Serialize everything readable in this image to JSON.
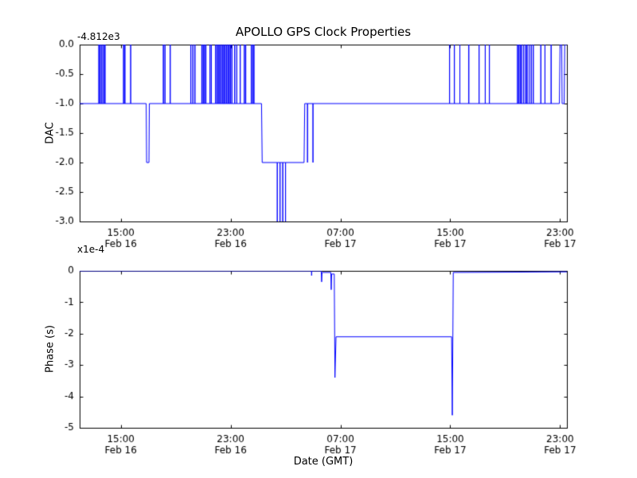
{
  "figure": {
    "background": "#ffffff",
    "frame_color": "#000000",
    "line_color": "#0000ff"
  },
  "chart_data": [
    {
      "type": "line",
      "title": "APOLLO GPS Clock Properties",
      "ylabel": "DAC",
      "offset_text": "-4.812e3",
      "xlim": [
        12,
        47.5
      ],
      "ylim": [
        -3,
        0
      ],
      "grid": false,
      "yticks": [
        0,
        -0.5,
        -1,
        -1.5,
        -2,
        -2.5,
        -3
      ],
      "ytick_labels": [
        "0.0",
        "-0.5",
        "-1.0",
        "-1.5",
        "-2.0",
        "-2.5",
        "-3.0"
      ],
      "xticks": [
        15,
        23,
        31,
        39,
        47
      ],
      "xtick_labels": [
        [
          "15:00",
          "Feb 16"
        ],
        [
          "23:00",
          "Feb 16"
        ],
        [
          "07:00",
          "Feb 17"
        ],
        [
          "15:00",
          "Feb 17"
        ],
        [
          "23:00",
          "Feb 17"
        ]
      ],
      "series": [
        {
          "name": "dac-trace",
          "color": "#0000ff",
          "points": [
            [
              12,
              -1
            ],
            [
              13.4,
              -1
            ],
            [
              13.4,
              0
            ],
            [
              13.4,
              -1
            ],
            [
              13.5,
              -1
            ],
            [
              13.5,
              0
            ],
            [
              13.5,
              -1
            ],
            [
              13.62,
              -1
            ],
            [
              13.62,
              0
            ],
            [
              13.62,
              -1
            ],
            [
              13.75,
              -1
            ],
            [
              13.75,
              0
            ],
            [
              13.75,
              -1
            ],
            [
              13.85,
              -1
            ],
            [
              13.85,
              0
            ],
            [
              13.85,
              -1
            ],
            [
              15.2,
              -1
            ],
            [
              15.2,
              0
            ],
            [
              15.2,
              -1
            ],
            [
              15.3,
              -1
            ],
            [
              15.3,
              0
            ],
            [
              15.3,
              -1
            ],
            [
              15.72,
              -1
            ],
            [
              15.72,
              0
            ],
            [
              15.72,
              -1
            ],
            [
              16.85,
              -1
            ],
            [
              16.88,
              -2
            ],
            [
              17.05,
              -2
            ],
            [
              17.08,
              -1
            ],
            [
              18.1,
              -1
            ],
            [
              18.1,
              0
            ],
            [
              18.1,
              -1
            ],
            [
              18.22,
              -1
            ],
            [
              18.22,
              0
            ],
            [
              18.22,
              -1
            ],
            [
              18.6,
              -1
            ],
            [
              18.6,
              0
            ],
            [
              18.6,
              -1
            ],
            [
              20.1,
              -1
            ],
            [
              20.1,
              0
            ],
            [
              20.1,
              -1
            ],
            [
              20.25,
              -1
            ],
            [
              20.25,
              0
            ],
            [
              20.25,
              -1
            ],
            [
              20.4,
              -1
            ],
            [
              20.4,
              0
            ],
            [
              20.4,
              -1
            ],
            [
              20.9,
              -1
            ],
            [
              20.9,
              0
            ],
            [
              20.9,
              -1
            ],
            [
              21.0,
              -1
            ],
            [
              21.0,
              0
            ],
            [
              21.0,
              -1
            ],
            [
              21.1,
              -1
            ],
            [
              21.1,
              0
            ],
            [
              21.1,
              -1
            ],
            [
              21.2,
              -1
            ],
            [
              21.2,
              0
            ],
            [
              21.2,
              -1
            ],
            [
              21.5,
              -1
            ],
            [
              21.5,
              0
            ],
            [
              21.5,
              -1
            ],
            [
              21.6,
              -1
            ],
            [
              21.6,
              0
            ],
            [
              21.6,
              -1
            ],
            [
              21.9,
              -1
            ],
            [
              21.9,
              0
            ],
            [
              21.9,
              -1
            ],
            [
              22.0,
              -1
            ],
            [
              22.0,
              0
            ],
            [
              22.0,
              -1
            ],
            [
              22.1,
              -1
            ],
            [
              22.1,
              0
            ],
            [
              22.1,
              -1
            ],
            [
              22.2,
              -1
            ],
            [
              22.2,
              0
            ],
            [
              22.2,
              -1
            ],
            [
              22.3,
              -1
            ],
            [
              22.3,
              0
            ],
            [
              22.3,
              -1
            ],
            [
              22.4,
              -1
            ],
            [
              22.4,
              0
            ],
            [
              22.4,
              -1
            ],
            [
              22.5,
              -1
            ],
            [
              22.5,
              0
            ],
            [
              22.5,
              -1
            ],
            [
              22.6,
              -1
            ],
            [
              22.6,
              0
            ],
            [
              22.6,
              -1
            ],
            [
              22.7,
              -1
            ],
            [
              22.7,
              0
            ],
            [
              22.7,
              -1
            ],
            [
              22.8,
              -1
            ],
            [
              22.8,
              0
            ],
            [
              22.8,
              -1
            ],
            [
              22.9,
              -1
            ],
            [
              22.9,
              0
            ],
            [
              22.9,
              -1
            ],
            [
              23.0,
              -1
            ],
            [
              23.0,
              0
            ],
            [
              23.0,
              -1
            ],
            [
              23.1,
              -1
            ],
            [
              23.1,
              0
            ],
            [
              23.1,
              -1
            ],
            [
              23.3,
              -1
            ],
            [
              23.3,
              0
            ],
            [
              23.3,
              -1
            ],
            [
              23.45,
              -1
            ],
            [
              23.45,
              0
            ],
            [
              23.45,
              -1
            ],
            [
              23.7,
              -1
            ],
            [
              23.7,
              0
            ],
            [
              23.7,
              -1
            ],
            [
              24.0,
              -1
            ],
            [
              24.0,
              0
            ],
            [
              24.0,
              -1
            ],
            [
              24.1,
              -1
            ],
            [
              24.1,
              0
            ],
            [
              24.1,
              -1
            ],
            [
              24.5,
              -1
            ],
            [
              24.5,
              0
            ],
            [
              24.5,
              -1
            ],
            [
              24.6,
              -1
            ],
            [
              24.6,
              0
            ],
            [
              24.6,
              -1
            ],
            [
              24.7,
              -1
            ],
            [
              24.7,
              0
            ],
            [
              24.7,
              -1
            ],
            [
              25.25,
              -1
            ],
            [
              25.3,
              -2
            ],
            [
              26.4,
              -2
            ],
            [
              26.4,
              -3
            ],
            [
              26.4,
              -2
            ],
            [
              26.6,
              -2
            ],
            [
              26.6,
              -3
            ],
            [
              26.6,
              -2
            ],
            [
              26.8,
              -2
            ],
            [
              26.8,
              -3
            ],
            [
              26.8,
              -2
            ],
            [
              27.0,
              -2
            ],
            [
              27.0,
              -3
            ],
            [
              27.0,
              -2
            ],
            [
              28.35,
              -2
            ],
            [
              28.4,
              -1
            ],
            [
              28.6,
              -1
            ],
            [
              28.6,
              -2
            ],
            [
              28.6,
              -1
            ],
            [
              29.0,
              -1
            ],
            [
              29.0,
              -2
            ],
            [
              29.0,
              -1
            ],
            [
              38.85,
              -1
            ],
            [
              38.95,
              -1
            ],
            [
              38.95,
              0
            ],
            [
              38.95,
              -1
            ],
            [
              39.3,
              -1
            ],
            [
              39.3,
              0
            ],
            [
              39.3,
              -1
            ],
            [
              39.7,
              -1
            ],
            [
              39.7,
              0
            ],
            [
              39.7,
              -1
            ],
            [
              40.35,
              -1
            ],
            [
              40.35,
              0
            ],
            [
              40.35,
              -1
            ],
            [
              41.1,
              -1
            ],
            [
              41.1,
              0
            ],
            [
              41.1,
              -1
            ],
            [
              41.55,
              -1
            ],
            [
              41.55,
              0
            ],
            [
              41.55,
              -1
            ],
            [
              41.85,
              -1
            ],
            [
              41.85,
              0
            ],
            [
              41.85,
              -1
            ],
            [
              43.9,
              -1
            ],
            [
              43.9,
              0
            ],
            [
              43.9,
              -1
            ],
            [
              44.0,
              -1
            ],
            [
              44.0,
              0
            ],
            [
              44.0,
              -1
            ],
            [
              44.1,
              -1
            ],
            [
              44.1,
              0
            ],
            [
              44.1,
              -1
            ],
            [
              44.2,
              -1
            ],
            [
              44.2,
              0
            ],
            [
              44.2,
              -1
            ],
            [
              44.35,
              -1
            ],
            [
              44.35,
              0
            ],
            [
              44.35,
              -1
            ],
            [
              44.5,
              -1
            ],
            [
              44.5,
              0
            ],
            [
              44.5,
              -1
            ],
            [
              44.6,
              -1
            ],
            [
              44.6,
              0
            ],
            [
              44.6,
              -1
            ],
            [
              44.75,
              -1
            ],
            [
              44.75,
              0
            ],
            [
              44.75,
              -1
            ],
            [
              44.9,
              -1
            ],
            [
              44.9,
              0
            ],
            [
              44.9,
              -1
            ],
            [
              45.05,
              -1
            ],
            [
              45.05,
              0
            ],
            [
              45.05,
              -1
            ],
            [
              45.6,
              -1
            ],
            [
              45.6,
              0
            ],
            [
              45.6,
              -1
            ],
            [
              45.9,
              -1
            ],
            [
              45.9,
              0
            ],
            [
              45.9,
              -1
            ],
            [
              46.35,
              -1
            ],
            [
              46.35,
              0
            ],
            [
              46.35,
              -1
            ],
            [
              46.95,
              -1
            ],
            [
              47.0,
              0
            ],
            [
              47.12,
              0
            ],
            [
              47.15,
              -1
            ],
            [
              47.3,
              -1
            ],
            [
              47.34,
              0
            ],
            [
              47.5,
              0
            ]
          ]
        }
      ]
    },
    {
      "type": "line",
      "ylabel": "Phase (s)",
      "xlabel": "Date (GMT)",
      "offset_text": "x1e-4",
      "xlim": [
        12,
        47.5
      ],
      "ylim": [
        -5,
        0
      ],
      "grid": false,
      "yticks": [
        0,
        -1,
        -2,
        -3,
        -4,
        -5
      ],
      "ytick_labels": [
        "0",
        "-1",
        "-2",
        "-3",
        "-4",
        "-5"
      ],
      "xticks": [
        15,
        23,
        31,
        39,
        47
      ],
      "xtick_labels": [
        [
          "15:00",
          "Feb 16"
        ],
        [
          "23:00",
          "Feb 16"
        ],
        [
          "07:00",
          "Feb 17"
        ],
        [
          "15:00",
          "Feb 17"
        ],
        [
          "23:00",
          "Feb 17"
        ]
      ],
      "series": [
        {
          "name": "phase-trace",
          "color": "#0000ff",
          "points": [
            [
              12,
              0
            ],
            [
              28.9,
              0
            ],
            [
              28.9,
              -0.15
            ],
            [
              28.9,
              0
            ],
            [
              29.6,
              0
            ],
            [
              29.63,
              -0.35
            ],
            [
              29.66,
              -0.05
            ],
            [
              30.3,
              -0.05
            ],
            [
              30.33,
              -0.6
            ],
            [
              30.36,
              -0.1
            ],
            [
              30.55,
              -0.1
            ],
            [
              30.6,
              -3.4
            ],
            [
              30.68,
              -2.1
            ],
            [
              39.1,
              -2.1
            ],
            [
              39.15,
              -4.6
            ],
            [
              39.22,
              -0.05
            ],
            [
              47.5,
              -0.03
            ]
          ]
        }
      ]
    }
  ]
}
